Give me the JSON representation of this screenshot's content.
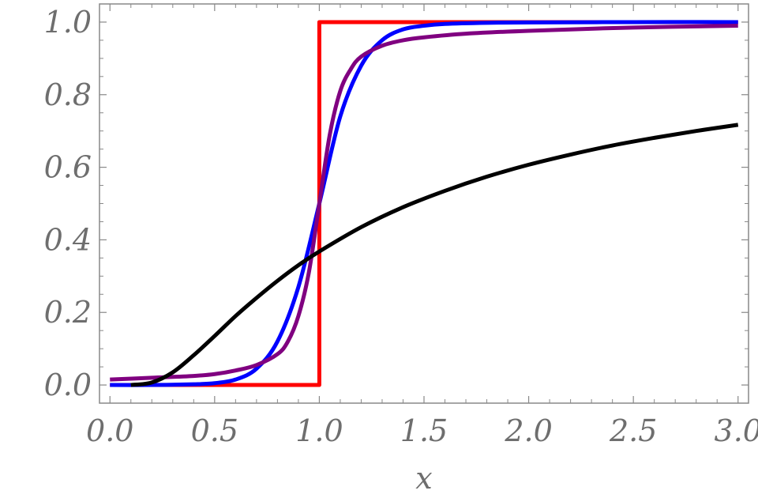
{
  "chart_data": {
    "type": "line",
    "title": "",
    "xlabel": "x",
    "ylabel": "",
    "xlim": [
      -0.05,
      3.05
    ],
    "ylim": [
      -0.05,
      1.05
    ],
    "grid": false,
    "x_ticks": [
      "0.0",
      "0.5",
      "1.0",
      "1.5",
      "2.0",
      "2.5",
      "3.0"
    ],
    "y_ticks": [
      "0.0",
      "0.2",
      "0.4",
      "0.6",
      "0.8",
      "1.0"
    ],
    "series": [
      {
        "color": "#ff0000",
        "step": true,
        "x": [
          0,
          1,
          1,
          3
        ],
        "y": [
          0,
          0,
          1,
          1
        ]
      },
      {
        "color": "#0000ff",
        "x": [
          0,
          0.2,
          0.4,
          0.5,
          0.6,
          0.7,
          0.8,
          0.9,
          1.0,
          1.1,
          1.2,
          1.3,
          1.4,
          1.5,
          1.6,
          1.8,
          2.0,
          2.5,
          3.0
        ],
        "y": [
          0,
          0.0,
          0.002,
          0.005,
          0.015,
          0.045,
          0.12,
          0.27,
          0.5,
          0.74,
          0.88,
          0.95,
          0.98,
          0.99,
          0.995,
          0.998,
          0.999,
          1.0,
          1.0
        ]
      },
      {
        "color": "#800080",
        "x": [
          0,
          0.2,
          0.4,
          0.5,
          0.6,
          0.7,
          0.8,
          0.85,
          0.9,
          0.95,
          1.0,
          1.05,
          1.1,
          1.15,
          1.2,
          1.3,
          1.4,
          1.5,
          1.7,
          2.0,
          2.5,
          3.0
        ],
        "y": [
          0.015,
          0.02,
          0.025,
          0.03,
          0.04,
          0.055,
          0.085,
          0.12,
          0.19,
          0.31,
          0.5,
          0.69,
          0.81,
          0.87,
          0.905,
          0.935,
          0.95,
          0.958,
          0.968,
          0.976,
          0.985,
          0.99
        ]
      },
      {
        "color": "#000000",
        "x": [
          0.1,
          0.2,
          0.3,
          0.4,
          0.5,
          0.6,
          0.7,
          0.8,
          0.9,
          1.0,
          1.2,
          1.4,
          1.6,
          1.8,
          2.0,
          2.2,
          2.4,
          2.6,
          2.8,
          3.0
        ],
        "y": [
          0.0,
          0.007,
          0.035,
          0.082,
          0.135,
          0.19,
          0.24,
          0.287,
          0.33,
          0.368,
          0.435,
          0.49,
          0.535,
          0.574,
          0.607,
          0.635,
          0.66,
          0.681,
          0.7,
          0.717
        ]
      }
    ]
  }
}
